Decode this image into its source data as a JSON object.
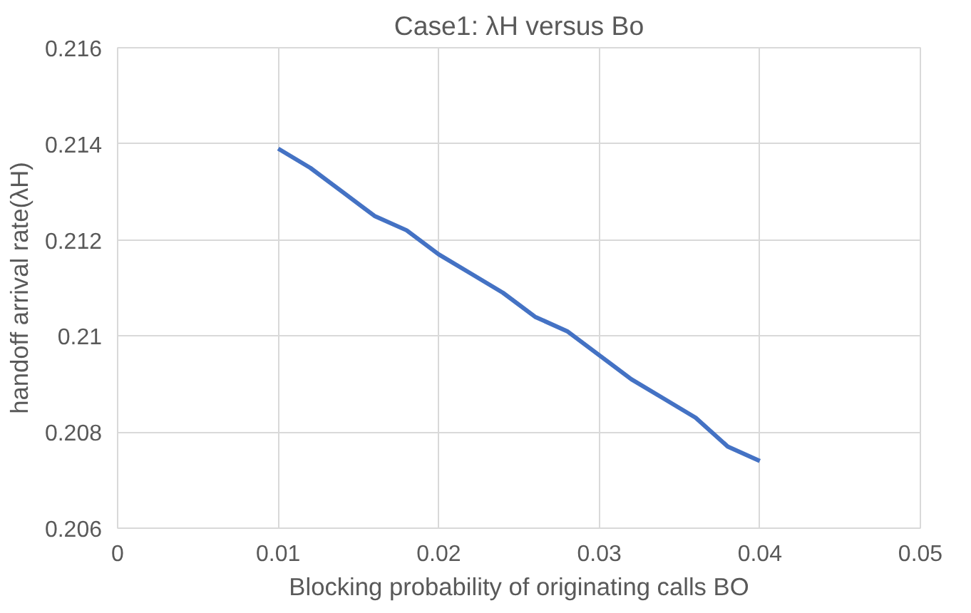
{
  "chart_data": {
    "type": "line",
    "title": "Case1: λH versus Bo",
    "xlabel": "Blocking probability of originating calls BO",
    "ylabel": "handoff arrival rate(λH)",
    "x": [
      0.01,
      0.012,
      0.014,
      0.016,
      0.018,
      0.02,
      0.022,
      0.024,
      0.026,
      0.028,
      0.03,
      0.032,
      0.034,
      0.036,
      0.038,
      0.04
    ],
    "series": [
      {
        "color": "#4472c4",
        "values": [
          0.2139,
          0.2135,
          0.213,
          0.2125,
          0.2122,
          0.2117,
          0.2113,
          0.2109,
          0.2104,
          0.2101,
          0.2096,
          0.2091,
          0.2087,
          0.2083,
          0.2077,
          0.2074
        ]
      }
    ],
    "xlim": [
      0,
      0.05
    ],
    "xticks": [
      0,
      0.01,
      0.02,
      0.03,
      0.04,
      0.05
    ],
    "ylim": [
      0.206,
      0.216
    ],
    "yticks": [
      0.206,
      0.208,
      0.21,
      0.212,
      0.214,
      0.216
    ],
    "grid": true,
    "marker": "none",
    "line_style": "solid"
  }
}
